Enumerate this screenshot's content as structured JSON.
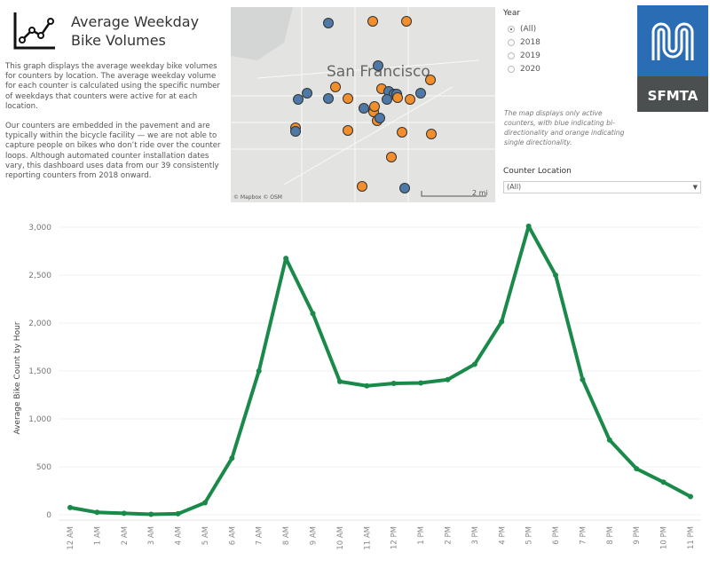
{
  "header": {
    "title": "Average Weekday Bike Volumes",
    "icon": "line-chart-icon"
  },
  "description": [
    "This graph displays the average weekday bike volumes for counters by location. The average weekday volume for each counter is calculated using the specific number of weekdays that counters were active for at each location.",
    "Our counters are embedded in the pavement and are typically within the bicycle facility — we are not able to capture people on bikes who don’t ride over the counter loops. Although automated counter installation dates vary, this dashboard uses data from our 39 consistently reporting counters from 2018 onward."
  ],
  "map": {
    "city_label": "San Francisco",
    "attribution": "© Mapbox © OSM",
    "scale": "2 mi",
    "colors": {
      "bi": "#4e79a7",
      "single": "#f28e2b"
    }
  },
  "year_filter": {
    "label": "Year",
    "options": [
      "(All)",
      "2018",
      "2019",
      "2020"
    ],
    "selected": "(All)"
  },
  "note": "The map displays only active counters, with blue indicating bi-directionality and orange indicating single directionality.",
  "counter_location": {
    "label": "Counter Location",
    "value": "(All)"
  },
  "logo": {
    "text": "SFMTA"
  },
  "chart_data": {
    "type": "line",
    "ylabel": "Average Bike Count by Hour",
    "xlabel": "",
    "ylim": [
      0,
      3000
    ],
    "yticks": [
      "0",
      "500",
      "1,000",
      "1,500",
      "2,000",
      "2,500",
      "3,000"
    ],
    "categories": [
      "12 AM",
      "1 AM",
      "2 AM",
      "3 AM",
      "4 AM",
      "5 AM",
      "6 AM",
      "7 AM",
      "8 AM",
      "9 AM",
      "10 AM",
      "11 AM",
      "12 PM",
      "1 PM",
      "2 PM",
      "3 PM",
      "4 PM",
      "5 PM",
      "6 PM",
      "7 PM",
      "8 PM",
      "9 PM",
      "10 PM",
      "11 PM"
    ],
    "values": [
      75,
      25,
      15,
      5,
      10,
      125,
      590,
      1500,
      2675,
      2100,
      1390,
      1345,
      1370,
      1375,
      1410,
      1570,
      2015,
      3010,
      2500,
      1410,
      780,
      480,
      340,
      190
    ],
    "color": "#1a8a4a"
  }
}
